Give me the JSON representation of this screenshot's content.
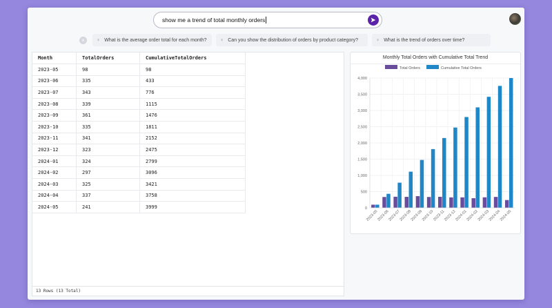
{
  "search": {
    "query": "show me a trend of total monthly orders"
  },
  "suggestions": [
    "What is the average order total for each month?",
    "Can you show the distribution of orders by product category?",
    "What is the trend of orders over time?"
  ],
  "table": {
    "columns": [
      "Month",
      "TotalOrders",
      "CumulativeTotalOrders"
    ],
    "rows": [
      [
        "2023-05",
        "98",
        "98"
      ],
      [
        "2023-06",
        "335",
        "433"
      ],
      [
        "2023-07",
        "343",
        "776"
      ],
      [
        "2023-08",
        "339",
        "1115"
      ],
      [
        "2023-09",
        "361",
        "1476"
      ],
      [
        "2023-10",
        "335",
        "1811"
      ],
      [
        "2023-11",
        "341",
        "2152"
      ],
      [
        "2023-12",
        "323",
        "2475"
      ],
      [
        "2024-01",
        "324",
        "2799"
      ],
      [
        "2024-02",
        "297",
        "3096"
      ],
      [
        "2024-03",
        "325",
        "3421"
      ],
      [
        "2024-04",
        "337",
        "3758"
      ],
      [
        "2024-05",
        "241",
        "3999"
      ]
    ],
    "footer": "13 Rows (13 Total)"
  },
  "chart_data": {
    "type": "bar",
    "title": "Monthly Total Orders with Cumulative Total Trend",
    "categories": [
      "2023-05",
      "2023-06",
      "2023-07",
      "2023-08",
      "2023-09",
      "2023-10",
      "2023-11",
      "2023-12",
      "2024-01",
      "2024-02",
      "2024-03",
      "2024-04",
      "2024-05"
    ],
    "series": [
      {
        "name": "Total Orders",
        "color": "#6a4c9c",
        "values": [
          98,
          335,
          343,
          339,
          361,
          335,
          341,
          323,
          324,
          297,
          325,
          337,
          241
        ]
      },
      {
        "name": "Cumulative Total Orders",
        "color": "#1f86c8",
        "values": [
          98,
          433,
          776,
          1115,
          1476,
          1811,
          2152,
          2475,
          2799,
          3096,
          3421,
          3758,
          3999
        ]
      }
    ],
    "ylim": [
      0,
      4000
    ],
    "yticks": [
      "0",
      "500",
      "1,000",
      "1,500",
      "2,000",
      "2,500",
      "3,000",
      "3,500",
      "4,000"
    ],
    "grid": true,
    "legend": "top"
  },
  "icons": {
    "send": "send-icon",
    "clear": "close-icon",
    "suggestion": "lightbulb-icon",
    "avatar": "user-avatar"
  }
}
